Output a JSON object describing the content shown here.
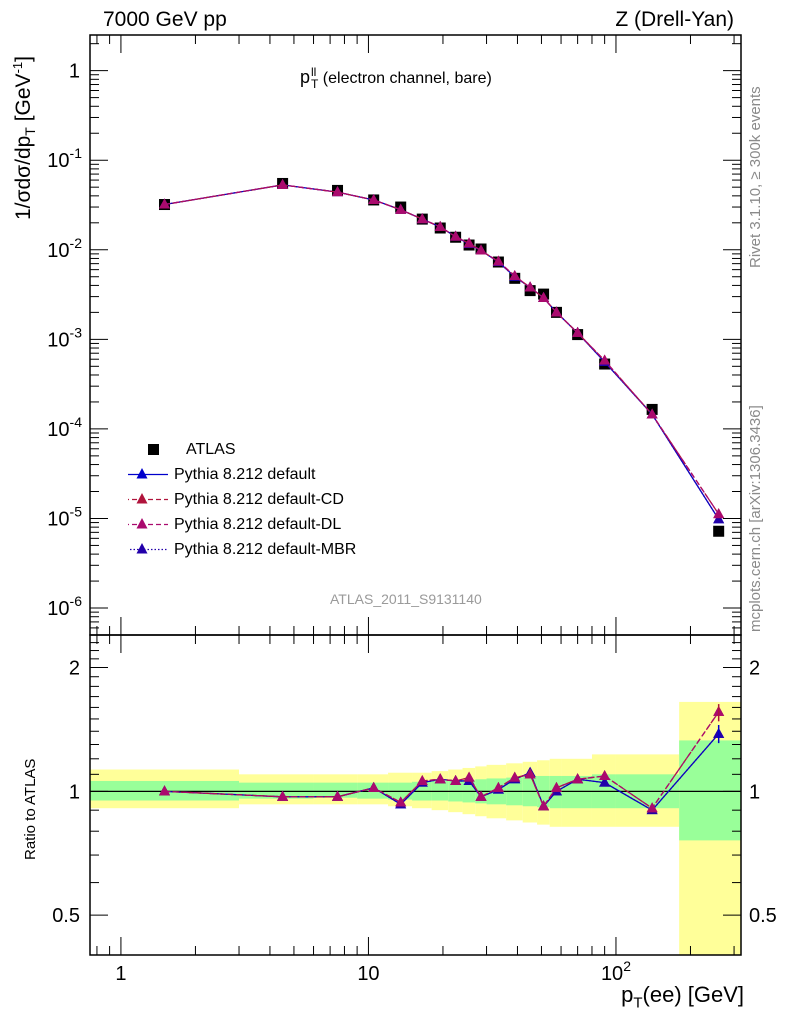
{
  "header": {
    "left": "7000 GeV pp",
    "right": "Z (Drell-Yan)"
  },
  "side_labels": {
    "rivet": "Rivet 3.1.10, ≥ 300k events",
    "mcplots": "mcplots.cern.ch [arXiv:1306.3436]"
  },
  "plot_title": {
    "main": "p",
    "sup": "ll",
    "sub": "T",
    "rest": " (electron channel, bare)"
  },
  "watermark": "ATLAS_2011_S9131140",
  "ylabel_main": {
    "prefix": "1/σdσ/dp",
    "sub": "T",
    "unit_pre": " [GeV",
    "unit_sup": "-1",
    "unit_post": "]"
  },
  "ylabel_ratio": "Ratio to ATLAS",
  "xlabel": {
    "prefix": "p",
    "sub": "T",
    "rest": "(ee) [GeV]"
  },
  "legend": [
    {
      "label": "ATLAS",
      "kind": "data",
      "color": "#000000"
    },
    {
      "label": "Pythia 8.212 default",
      "kind": "line-solid",
      "color": "#0000cc"
    },
    {
      "label": "Pythia 8.212 default-CD",
      "kind": "line-dashed",
      "color": "#b0143c"
    },
    {
      "label": "Pythia 8.212 default-DL",
      "kind": "line-dashed",
      "color": "#aa0a6e"
    },
    {
      "label": "Pythia 8.212 default-MBR",
      "kind": "line-dotted",
      "color": "#2200aa"
    }
  ],
  "chart_data": [
    {
      "type": "line",
      "panel": "main",
      "xscale": "log",
      "yscale": "log",
      "xlim": [
        0.75,
        320
      ],
      "ylim": [
        5e-07,
        2.5
      ],
      "ylabel": "1/σdσ/dp_T [GeV^-1]",
      "ytick_labels": [
        "1",
        "10^-1",
        "10^-2",
        "10^-3",
        "10^-4",
        "10^-5",
        "10^-6"
      ],
      "x": [
        1.5,
        4.5,
        7.5,
        10.5,
        13.5,
        16.5,
        19.5,
        22.5,
        25.5,
        28.5,
        33.5,
        39,
        45,
        51,
        57.5,
        70,
        90,
        140,
        260
      ],
      "series": [
        {
          "name": "ATLAS",
          "values": [
            0.032,
            0.055,
            0.046,
            0.036,
            0.03,
            0.022,
            0.0175,
            0.0138,
            0.0113,
            0.0102,
            0.0073,
            0.0048,
            0.0035,
            0.0032,
            0.002,
            0.00113,
            0.00053,
            0.000165,
            7.2e-06
          ]
        },
        {
          "name": "Pythia 8.212 default",
          "values": [
            0.032,
            0.053,
            0.044,
            0.036,
            0.028,
            0.022,
            0.018,
            0.014,
            0.0116,
            0.0098,
            0.0073,
            0.005,
            0.0038,
            0.0029,
            0.002,
            0.00118,
            0.00056,
            0.000145,
            9.8e-06
          ]
        },
        {
          "name": "Pythia 8.212 default-CD",
          "values": [
            0.032,
            0.053,
            0.044,
            0.036,
            0.028,
            0.022,
            0.018,
            0.014,
            0.0118,
            0.0098,
            0.0074,
            0.0051,
            0.0038,
            0.0029,
            0.002,
            0.00118,
            0.00058,
            0.000145,
            1.12e-05
          ]
        },
        {
          "name": "Pythia 8.212 default-DL",
          "values": [
            0.032,
            0.053,
            0.044,
            0.036,
            0.028,
            0.022,
            0.018,
            0.014,
            0.0118,
            0.0098,
            0.0074,
            0.0051,
            0.0038,
            0.0029,
            0.002,
            0.00118,
            0.00058,
            0.000145,
            1.12e-05
          ]
        },
        {
          "name": "Pythia 8.212 default-MBR",
          "values": [
            0.032,
            0.053,
            0.044,
            0.036,
            0.028,
            0.022,
            0.018,
            0.014,
            0.0116,
            0.0098,
            0.0073,
            0.005,
            0.0038,
            0.0029,
            0.002,
            0.00118,
            0.00056,
            0.000145,
            9.8e-06
          ]
        }
      ]
    },
    {
      "type": "line",
      "panel": "ratio",
      "xscale": "log",
      "yscale": "log",
      "xlim": [
        0.75,
        320
      ],
      "ylim": [
        0.4,
        2.4
      ],
      "xlabel": "p_T(ee) [GeV]",
      "ylabel": "Ratio to ATLAS",
      "xtick_labels": [
        "1",
        "10",
        "10^2"
      ],
      "ytick_labels": [
        "0.5",
        "1",
        "2"
      ],
      "x": [
        1.5,
        4.5,
        7.5,
        10.5,
        13.5,
        16.5,
        19.5,
        22.5,
        25.5,
        28.5,
        33.5,
        39,
        45,
        51,
        57.5,
        70,
        90,
        140,
        260
      ],
      "uncertainty_bands": {
        "edges": [
          0.75,
          3,
          6,
          9,
          12,
          15,
          18,
          21,
          24,
          27,
          30,
          36,
          42,
          48,
          54,
          60,
          80,
          100,
          180,
          320
        ],
        "inner": [
          [
            0.95,
            1.06
          ],
          [
            0.96,
            1.05
          ],
          [
            0.965,
            1.05
          ],
          [
            0.96,
            1.05
          ],
          [
            0.955,
            1.05
          ],
          [
            0.95,
            1.055
          ],
          [
            0.95,
            1.06
          ],
          [
            0.945,
            1.06
          ],
          [
            0.94,
            1.065
          ],
          [
            0.935,
            1.07
          ],
          [
            0.93,
            1.075
          ],
          [
            0.925,
            1.08
          ],
          [
            0.92,
            1.09
          ],
          [
            0.915,
            1.09
          ],
          [
            0.91,
            1.09
          ],
          [
            0.91,
            1.09
          ],
          [
            0.91,
            1.1
          ],
          [
            0.91,
            1.1
          ],
          [
            0.76,
            1.33
          ]
        ],
        "outer": [
          [
            0.91,
            1.13
          ],
          [
            0.93,
            1.1
          ],
          [
            0.93,
            1.1
          ],
          [
            0.93,
            1.1
          ],
          [
            0.92,
            1.11
          ],
          [
            0.91,
            1.11
          ],
          [
            0.9,
            1.12
          ],
          [
            0.89,
            1.13
          ],
          [
            0.88,
            1.14
          ],
          [
            0.87,
            1.15
          ],
          [
            0.86,
            1.16
          ],
          [
            0.85,
            1.17
          ],
          [
            0.84,
            1.18
          ],
          [
            0.83,
            1.19
          ],
          [
            0.82,
            1.2
          ],
          [
            0.82,
            1.2
          ],
          [
            0.82,
            1.23
          ],
          [
            0.82,
            1.23
          ],
          [
            0.39,
            1.65
          ]
        ]
      },
      "series": [
        {
          "name": "Pythia 8.212 default",
          "values": [
            1.0,
            0.97,
            0.97,
            1.02,
            0.93,
            1.05,
            1.07,
            1.06,
            1.06,
            0.97,
            1.01,
            1.07,
            1.11,
            0.92,
            1.0,
            1.07,
            1.05,
            0.9,
            1.38
          ]
        },
        {
          "name": "Pythia 8.212 default-CD",
          "values": [
            1.0,
            0.97,
            0.97,
            1.02,
            0.94,
            1.06,
            1.07,
            1.06,
            1.08,
            0.97,
            1.02,
            1.08,
            1.1,
            0.92,
            1.02,
            1.07,
            1.09,
            0.91,
            1.56
          ]
        },
        {
          "name": "Pythia 8.212 default-DL",
          "values": [
            1.0,
            0.97,
            0.97,
            1.02,
            0.94,
            1.06,
            1.07,
            1.06,
            1.08,
            0.97,
            1.02,
            1.08,
            1.1,
            0.92,
            1.02,
            1.07,
            1.09,
            0.91,
            1.56
          ]
        },
        {
          "name": "Pythia 8.212 default-MBR",
          "values": [
            1.0,
            0.97,
            0.97,
            1.02,
            0.93,
            1.05,
            1.07,
            1.06,
            1.06,
            0.97,
            1.01,
            1.07,
            1.11,
            0.92,
            1.0,
            1.07,
            1.05,
            0.9,
            1.38
          ]
        }
      ]
    }
  ],
  "colors": {
    "band_inner": "#99ff99",
    "band_outer": "#ffff99",
    "default": "#0000cc",
    "cd": "#b0143c",
    "dl": "#aa0a6e",
    "mbr": "#2200aa"
  }
}
